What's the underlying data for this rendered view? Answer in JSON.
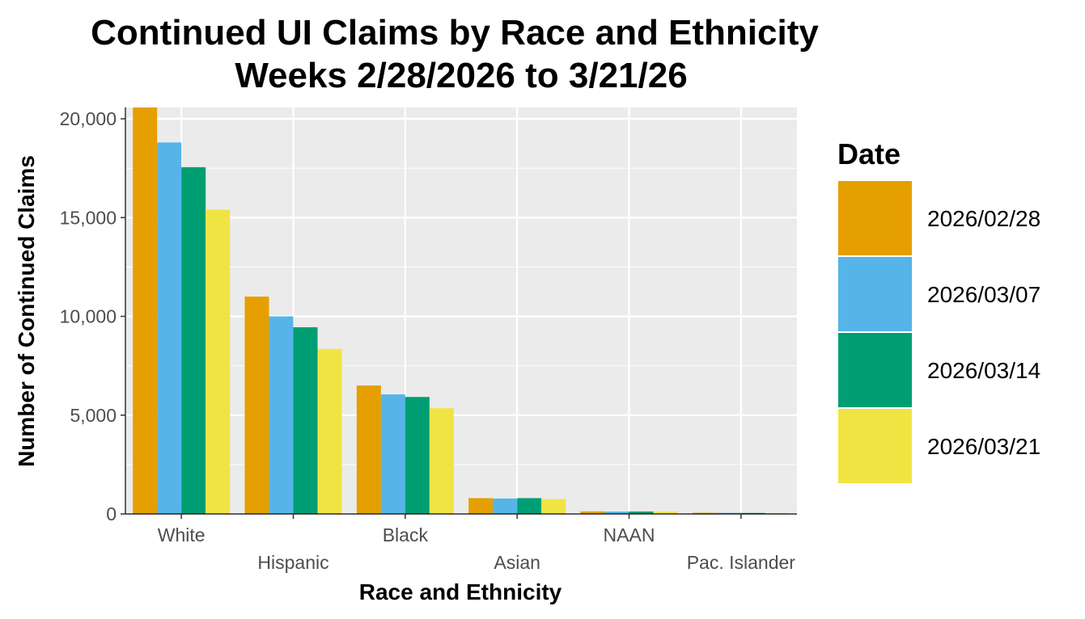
{
  "chart_data": {
    "type": "bar",
    "title": "Continued UI Claims by Race and Ethnicity",
    "subtitle": "Weeks 2/28/2026 to 3/21/26",
    "xlabel": "Race and Ethnicity",
    "ylabel": "Number of Continued Claims",
    "ylim": [
      0,
      20500
    ],
    "yticks": [
      0,
      5000,
      10000,
      15000,
      20000
    ],
    "ytick_labels": [
      "0",
      "5,000",
      "10,000",
      "15,000",
      "20,000"
    ],
    "categories": [
      "White",
      "Hispanic",
      "Black",
      "Asian",
      "NAAN",
      "Pac. Islander"
    ],
    "legend_title": "Date",
    "legend_position": "right",
    "grid": true,
    "series": [
      {
        "name": "2026/02/28",
        "color": "#E69F00",
        "values": [
          20600,
          11000,
          6500,
          800,
          130,
          60
        ]
      },
      {
        "name": "2026/03/07",
        "color": "#56B4E9",
        "values": [
          18800,
          10000,
          6050,
          780,
          120,
          55
        ]
      },
      {
        "name": "2026/03/14",
        "color": "#009E73",
        "values": [
          17550,
          9450,
          5920,
          800,
          125,
          50
        ]
      },
      {
        "name": "2026/03/21",
        "color": "#F0E442",
        "values": [
          15400,
          8350,
          5350,
          750,
          110,
          45
        ]
      }
    ]
  }
}
